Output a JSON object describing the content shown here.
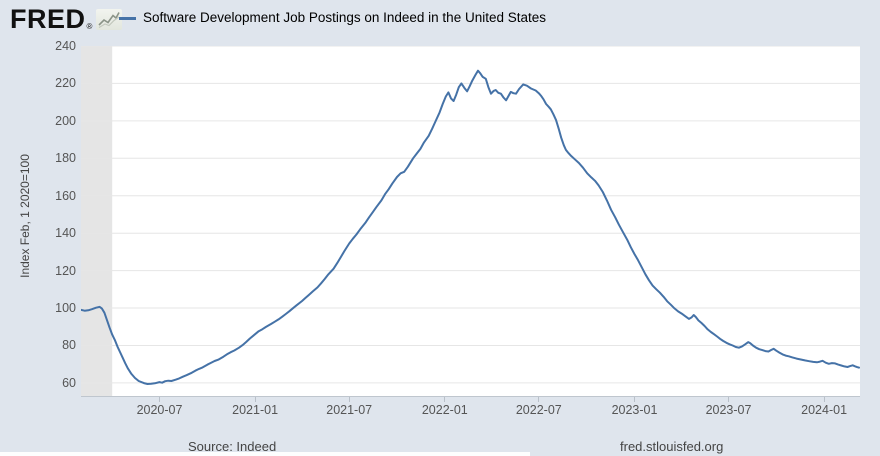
{
  "header": {
    "logo_text": "FRED",
    "logo_registered": "®",
    "legend": {
      "series_label": "Software Development Job Postings on Indeed in the United States"
    }
  },
  "y_axis": {
    "title": "Index Feb, 1 2020=100",
    "ticks": [
      240,
      220,
      200,
      180,
      160,
      140,
      120,
      100,
      80,
      60
    ]
  },
  "x_axis": {
    "ticks": [
      {
        "label": "2020-07",
        "date": "2020-07-01"
      },
      {
        "label": "2021-01",
        "date": "2021-01-01"
      },
      {
        "label": "2021-07",
        "date": "2021-07-01"
      },
      {
        "label": "2022-01",
        "date": "2022-01-01"
      },
      {
        "label": "2022-07",
        "date": "2022-07-01"
      },
      {
        "label": "2023-01",
        "date": "2023-01-01"
      },
      {
        "label": "2023-07",
        "date": "2023-07-01"
      },
      {
        "label": "2024-01",
        "date": "2024-01-01"
      }
    ]
  },
  "footer": {
    "source_label": "Source: Indeed",
    "site_link": "fred.stlouisfed.org"
  },
  "chart_data": {
    "type": "line",
    "title": "Software Development Job Postings on Indeed in the United States",
    "xlabel": "",
    "ylabel": "Index Feb, 1 2020=100",
    "xlim": [
      "2020-02-01",
      "2024-03-10"
    ],
    "ylim": [
      53,
      240
    ],
    "yticks": [
      60,
      80,
      100,
      120,
      140,
      160,
      180,
      200,
      220,
      240
    ],
    "grid": "horizontal",
    "legend_position": "top-left",
    "colors": {
      "line": "#4572a7",
      "plot_background": "#ffffff",
      "page_background": "#dfe5ed",
      "recession_band": "#e5e5e5",
      "gridline": "#e6e6e6",
      "axis_text": "#555555"
    },
    "recession_bands": [
      {
        "start": "2020-02-01",
        "end": "2020-04-01"
      }
    ],
    "series": [
      {
        "name": "Software Development Job Postings on Indeed in the United States",
        "color": "#4572a7",
        "points": [
          [
            "2020-02-01",
            99.0
          ],
          [
            "2020-02-08",
            98.6
          ],
          [
            "2020-02-15",
            98.8
          ],
          [
            "2020-02-22",
            99.4
          ],
          [
            "2020-03-01",
            100.2
          ],
          [
            "2020-03-08",
            100.6
          ],
          [
            "2020-03-12",
            99.8
          ],
          [
            "2020-03-17",
            97.5
          ],
          [
            "2020-03-22",
            93.5
          ],
          [
            "2020-03-27",
            89.5
          ],
          [
            "2020-04-01",
            85.8
          ],
          [
            "2020-04-06",
            83.0
          ],
          [
            "2020-04-11",
            79.5
          ],
          [
            "2020-04-16",
            76.5
          ],
          [
            "2020-04-21",
            73.5
          ],
          [
            "2020-04-26",
            70.5
          ],
          [
            "2020-05-01",
            67.8
          ],
          [
            "2020-05-08",
            64.8
          ],
          [
            "2020-05-15",
            62.6
          ],
          [
            "2020-05-22",
            61.0
          ],
          [
            "2020-06-01",
            59.9
          ],
          [
            "2020-06-08",
            59.4
          ],
          [
            "2020-06-15",
            59.5
          ],
          [
            "2020-06-22",
            59.8
          ],
          [
            "2020-07-01",
            60.4
          ],
          [
            "2020-07-06",
            60.1
          ],
          [
            "2020-07-12",
            60.9
          ],
          [
            "2020-07-18",
            61.2
          ],
          [
            "2020-07-24",
            61.0
          ],
          [
            "2020-08-01",
            61.7
          ],
          [
            "2020-08-08",
            62.4
          ],
          [
            "2020-08-15",
            63.3
          ],
          [
            "2020-08-22",
            64.1
          ],
          [
            "2020-09-01",
            65.4
          ],
          [
            "2020-09-08",
            66.5
          ],
          [
            "2020-09-15",
            67.5
          ],
          [
            "2020-09-22",
            68.3
          ],
          [
            "2020-10-01",
            69.7
          ],
          [
            "2020-10-08",
            70.7
          ],
          [
            "2020-10-15",
            71.7
          ],
          [
            "2020-10-22",
            72.4
          ],
          [
            "2020-11-01",
            74.0
          ],
          [
            "2020-11-08",
            75.3
          ],
          [
            "2020-11-15",
            76.4
          ],
          [
            "2020-11-22",
            77.3
          ],
          [
            "2020-12-01",
            78.8
          ],
          [
            "2020-12-08",
            80.2
          ],
          [
            "2020-12-15",
            81.9
          ],
          [
            "2020-12-22",
            83.7
          ],
          [
            "2021-01-01",
            86.0
          ],
          [
            "2021-01-08",
            87.6
          ],
          [
            "2021-01-15",
            88.7
          ],
          [
            "2021-01-22",
            89.9
          ],
          [
            "2021-02-01",
            91.5
          ],
          [
            "2021-02-08",
            92.7
          ],
          [
            "2021-02-15",
            93.9
          ],
          [
            "2021-02-22",
            95.3
          ],
          [
            "2021-03-01",
            96.8
          ],
          [
            "2021-03-08",
            98.3
          ],
          [
            "2021-03-15",
            99.9
          ],
          [
            "2021-03-22",
            101.5
          ],
          [
            "2021-04-01",
            103.7
          ],
          [
            "2021-04-08",
            105.4
          ],
          [
            "2021-04-15",
            107.1
          ],
          [
            "2021-04-22",
            108.9
          ],
          [
            "2021-05-01",
            111.0
          ],
          [
            "2021-05-08",
            113.2
          ],
          [
            "2021-05-15",
            115.5
          ],
          [
            "2021-05-22",
            118.0
          ],
          [
            "2021-06-01",
            121.0
          ],
          [
            "2021-06-08",
            124.0
          ],
          [
            "2021-06-15",
            127.2
          ],
          [
            "2021-06-22",
            130.5
          ],
          [
            "2021-07-01",
            134.5
          ],
          [
            "2021-07-08",
            137.0
          ],
          [
            "2021-07-15",
            139.3
          ],
          [
            "2021-07-22",
            142.0
          ],
          [
            "2021-08-01",
            145.5
          ],
          [
            "2021-08-08",
            148.3
          ],
          [
            "2021-08-15",
            151.0
          ],
          [
            "2021-08-22",
            153.8
          ],
          [
            "2021-09-01",
            157.5
          ],
          [
            "2021-09-08",
            160.8
          ],
          [
            "2021-09-15",
            163.5
          ],
          [
            "2021-09-22",
            166.5
          ],
          [
            "2021-10-01",
            170.0
          ],
          [
            "2021-10-08",
            172.0
          ],
          [
            "2021-10-15",
            172.8
          ],
          [
            "2021-10-22",
            175.5
          ],
          [
            "2021-11-01",
            180.0
          ],
          [
            "2021-11-08",
            182.5
          ],
          [
            "2021-11-15",
            185.0
          ],
          [
            "2021-11-22",
            188.5
          ],
          [
            "2021-12-01",
            192.0
          ],
          [
            "2021-12-08",
            196.0
          ],
          [
            "2021-12-15",
            200.2
          ],
          [
            "2021-12-22",
            204.5
          ],
          [
            "2021-12-28",
            209.0
          ],
          [
            "2022-01-03",
            213.0
          ],
          [
            "2022-01-08",
            215.2
          ],
          [
            "2022-01-13",
            212.0
          ],
          [
            "2022-01-18",
            210.6
          ],
          [
            "2022-01-23",
            214.0
          ],
          [
            "2022-01-28",
            218.0
          ],
          [
            "2022-02-02",
            220.0
          ],
          [
            "2022-02-08",
            217.5
          ],
          [
            "2022-02-13",
            215.8
          ],
          [
            "2022-02-18",
            218.5
          ],
          [
            "2022-02-23",
            221.5
          ],
          [
            "2022-03-01",
            224.5
          ],
          [
            "2022-03-06",
            226.8
          ],
          [
            "2022-03-10",
            225.5
          ],
          [
            "2022-03-15",
            223.5
          ],
          [
            "2022-03-21",
            222.5
          ],
          [
            "2022-03-26",
            218.0
          ],
          [
            "2022-03-31",
            214.5
          ],
          [
            "2022-04-05",
            216.0
          ],
          [
            "2022-04-09",
            216.5
          ],
          [
            "2022-04-14",
            215.0
          ],
          [
            "2022-04-19",
            214.5
          ],
          [
            "2022-04-24",
            212.5
          ],
          [
            "2022-04-29",
            211.0
          ],
          [
            "2022-05-04",
            213.5
          ],
          [
            "2022-05-08",
            215.5
          ],
          [
            "2022-05-13",
            214.8
          ],
          [
            "2022-05-18",
            214.5
          ],
          [
            "2022-05-24",
            217.0
          ],
          [
            "2022-06-01",
            219.5
          ],
          [
            "2022-06-08",
            218.8
          ],
          [
            "2022-06-16",
            217.3
          ],
          [
            "2022-06-25",
            216.2
          ],
          [
            "2022-07-01",
            214.8
          ],
          [
            "2022-07-05",
            213.5
          ],
          [
            "2022-07-10",
            211.5
          ],
          [
            "2022-07-15",
            209.0
          ],
          [
            "2022-07-20",
            207.5
          ],
          [
            "2022-07-24",
            206.2
          ],
          [
            "2022-07-29",
            203.5
          ],
          [
            "2022-08-03",
            200.5
          ],
          [
            "2022-08-08",
            196.0
          ],
          [
            "2022-08-13",
            191.0
          ],
          [
            "2022-08-18",
            187.0
          ],
          [
            "2022-08-22",
            184.5
          ],
          [
            "2022-08-27",
            182.8
          ],
          [
            "2022-09-01",
            181.3
          ],
          [
            "2022-09-08",
            179.5
          ],
          [
            "2022-09-16",
            177.5
          ],
          [
            "2022-09-24",
            175.0
          ],
          [
            "2022-10-02",
            172.0
          ],
          [
            "2022-10-10",
            169.8
          ],
          [
            "2022-10-17",
            168.0
          ],
          [
            "2022-10-24",
            165.5
          ],
          [
            "2022-11-01",
            162.0
          ],
          [
            "2022-11-09",
            157.5
          ],
          [
            "2022-11-17",
            152.5
          ],
          [
            "2022-11-25",
            148.5
          ],
          [
            "2022-12-02",
            144.5
          ],
          [
            "2022-12-10",
            140.5
          ],
          [
            "2022-12-18",
            136.5
          ],
          [
            "2022-12-25",
            132.5
          ],
          [
            "2023-01-01",
            128.8
          ],
          [
            "2023-01-08",
            125.5
          ],
          [
            "2023-01-15",
            121.8
          ],
          [
            "2023-01-22",
            118.0
          ],
          [
            "2023-01-29",
            114.8
          ],
          [
            "2023-02-05",
            112.0
          ],
          [
            "2023-02-12",
            110.0
          ],
          [
            "2023-02-19",
            108.2
          ],
          [
            "2023-02-26",
            106.0
          ],
          [
            "2023-03-05",
            103.6
          ],
          [
            "2023-03-12",
            101.8
          ],
          [
            "2023-03-19",
            99.8
          ],
          [
            "2023-03-26",
            98.2
          ],
          [
            "2023-04-02",
            97.0
          ],
          [
            "2023-04-09",
            95.6
          ],
          [
            "2023-04-16",
            94.2
          ],
          [
            "2023-04-21",
            95.0
          ],
          [
            "2023-04-25",
            96.3
          ],
          [
            "2023-04-29",
            95.2
          ],
          [
            "2023-05-04",
            93.4
          ],
          [
            "2023-05-10",
            92.0
          ],
          [
            "2023-05-16",
            90.4
          ],
          [
            "2023-05-22",
            88.6
          ],
          [
            "2023-05-28",
            87.2
          ],
          [
            "2023-06-03",
            86.0
          ],
          [
            "2023-06-09",
            84.8
          ],
          [
            "2023-06-15",
            83.5
          ],
          [
            "2023-06-21",
            82.4
          ],
          [
            "2023-06-27",
            81.4
          ],
          [
            "2023-07-03",
            80.6
          ],
          [
            "2023-07-09",
            80.0
          ],
          [
            "2023-07-15",
            79.2
          ],
          [
            "2023-07-21",
            78.8
          ],
          [
            "2023-07-27",
            79.5
          ],
          [
            "2023-08-02",
            80.6
          ],
          [
            "2023-08-08",
            81.8
          ],
          [
            "2023-08-12",
            81.2
          ],
          [
            "2023-08-17",
            80.0
          ],
          [
            "2023-08-23",
            78.8
          ],
          [
            "2023-08-29",
            78.0
          ],
          [
            "2023-09-04",
            77.5
          ],
          [
            "2023-09-10",
            77.0
          ],
          [
            "2023-09-16",
            76.8
          ],
          [
            "2023-09-21",
            77.6
          ],
          [
            "2023-09-26",
            78.2
          ],
          [
            "2023-10-01",
            77.2
          ],
          [
            "2023-10-07",
            76.2
          ],
          [
            "2023-10-13",
            75.2
          ],
          [
            "2023-10-19",
            74.6
          ],
          [
            "2023-10-25",
            74.2
          ],
          [
            "2023-11-01",
            73.6
          ],
          [
            "2023-11-09",
            73.0
          ],
          [
            "2023-11-17",
            72.5
          ],
          [
            "2023-11-25",
            72.0
          ],
          [
            "2023-12-03",
            71.6
          ],
          [
            "2023-12-11",
            71.2
          ],
          [
            "2023-12-18",
            71.0
          ],
          [
            "2023-12-24",
            71.4
          ],
          [
            "2023-12-29",
            71.8
          ],
          [
            "2024-01-04",
            70.8
          ],
          [
            "2024-01-10",
            70.2
          ],
          [
            "2024-01-16",
            70.6
          ],
          [
            "2024-01-22",
            70.4
          ],
          [
            "2024-01-28",
            69.8
          ],
          [
            "2024-02-03",
            69.3
          ],
          [
            "2024-02-09",
            68.8
          ],
          [
            "2024-02-15",
            68.5
          ],
          [
            "2024-02-20",
            69.0
          ],
          [
            "2024-02-25",
            69.4
          ],
          [
            "2024-03-01",
            68.8
          ],
          [
            "2024-03-05",
            68.4
          ],
          [
            "2024-03-08",
            68.2
          ]
        ]
      }
    ]
  }
}
